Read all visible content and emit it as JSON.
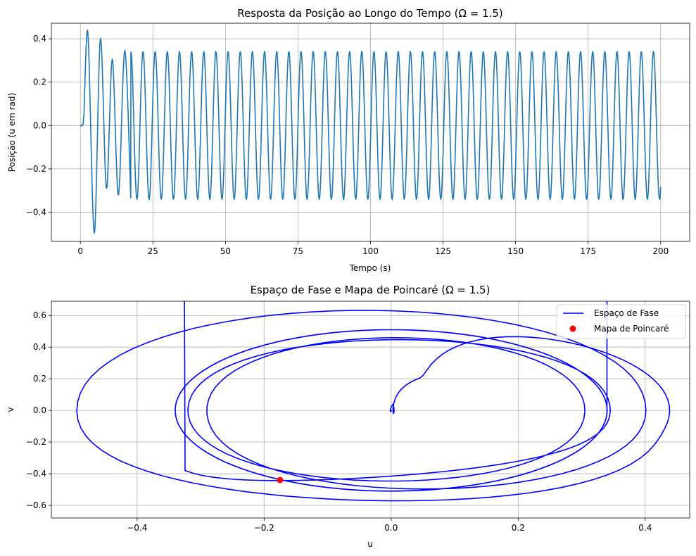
{
  "chart_data": [
    {
      "type": "line",
      "title": "Resposta da Posição ao Longo do Tempo (Ω = 1.5)",
      "xlabel": "Tempo (s)",
      "ylabel": "Posição (u em rad)",
      "xlim": [
        -10,
        210
      ],
      "ylim": [
        -0.535,
        0.472
      ],
      "xticks": [
        0,
        25,
        50,
        75,
        100,
        125,
        150,
        175,
        200
      ],
      "xtick_labels": [
        "0",
        "25",
        "50",
        "75",
        "100",
        "125",
        "150",
        "175",
        "200"
      ],
      "yticks": [
        -0.4,
        -0.2,
        0.0,
        0.2,
        0.4
      ],
      "ytick_labels": [
        "−0.4",
        "−0.2",
        "0.0",
        "0.2",
        "0.4"
      ],
      "grid": true,
      "series": [
        {
          "color": "#1f77b4",
          "model": {
            "t_range": [
              0,
              200
            ],
            "omega": 1.5,
            "steady_amplitude": 0.34,
            "transient_peaks": [
              [
                2.6,
                0.425
              ],
              [
                4.8,
                -0.495
              ],
              [
                6.9,
                0.4
              ],
              [
                9.0,
                -0.29
              ],
              [
                11.0,
                0.305
              ],
              [
                13.1,
                -0.32
              ],
              [
                15.3,
                0.345
              ],
              [
                17.4,
                -0.345
              ]
            ]
          }
        }
      ]
    },
    {
      "type": "line",
      "title": "Espaço de Fase e Mapa de Poincaré (Ω = 1.5)",
      "xlabel": "u",
      "ylabel": "v",
      "xlim": [
        -0.535,
        0.47
      ],
      "ylim": [
        -0.68,
        0.69
      ],
      "xticks": [
        -0.4,
        -0.2,
        0.0,
        0.2,
        0.4
      ],
      "xtick_labels": [
        "−0.4",
        "−0.2",
        "0.0",
        "0.2",
        "0.4"
      ],
      "yticks": [
        -0.6,
        -0.4,
        -0.2,
        0.0,
        0.2,
        0.4,
        0.6
      ],
      "ytick_labels": [
        "−0.6",
        "−0.4",
        "−0.2",
        "0.0",
        "0.2",
        "0.4",
        "0.6"
      ],
      "grid": true,
      "legend": {
        "placement": "upper-right",
        "entries": [
          {
            "label": "Espaço de Fase",
            "kind": "line",
            "color": "#0000ff"
          },
          {
            "label": "Mapa de Poincaré",
            "kind": "marker",
            "color": "#ff0000"
          }
        ]
      },
      "series": [
        {
          "name": "Espaço de Fase",
          "color": "#0000ff",
          "source": "derived-from-position-model"
        },
        {
          "name": "Mapa de Poincaré",
          "color": "#ff0000",
          "points": [
            [
              -0.175,
              -0.44
            ]
          ]
        }
      ]
    }
  ]
}
